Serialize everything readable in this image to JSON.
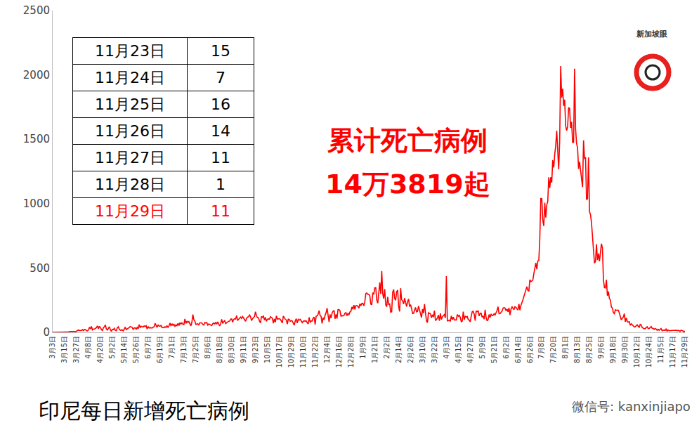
{
  "chart_data": {
    "type": "line",
    "title": "印尼每日新增死亡病例",
    "color": "#ff0000",
    "ylim": [
      0,
      2500
    ],
    "yticks": [
      0,
      500,
      1000,
      1500,
      2000,
      2500
    ],
    "grid": false,
    "annotations": [
      "累计死亡病例",
      "14万3819起"
    ],
    "categories": [
      "3月3日",
      null,
      null,
      null,
      null,
      null,
      null,
      null,
      null,
      null,
      null,
      null,
      "3月15日",
      null,
      null,
      null,
      null,
      null,
      null,
      null,
      null,
      null,
      null,
      null,
      "3月27日",
      null,
      null,
      null,
      null,
      null,
      null,
      null,
      null,
      null,
      null,
      null,
      "4月8日",
      null,
      null,
      null,
      null,
      null,
      null,
      null,
      null,
      null,
      null,
      null,
      "4月20日",
      null,
      null,
      null,
      null,
      null,
      null,
      null,
      null,
      null,
      null,
      null,
      "5月2日",
      null,
      null,
      null,
      null,
      null,
      null,
      null,
      null,
      null,
      null,
      null,
      "5月14日",
      null,
      null,
      null,
      null,
      null,
      null,
      null,
      null,
      null,
      null,
      null,
      "5月26日",
      null,
      null,
      null,
      null,
      null,
      null,
      null,
      null,
      null,
      null,
      null,
      "6月7日",
      null,
      null,
      null,
      null,
      null,
      null,
      null,
      null,
      null,
      null,
      null,
      "6月19日",
      null,
      null,
      null,
      null,
      null,
      null,
      null,
      null,
      null,
      null,
      null,
      "7月1日",
      null,
      null,
      null,
      null,
      null,
      null,
      null,
      null,
      null,
      null,
      null,
      "7月13日",
      null,
      null,
      null,
      null,
      null,
      null,
      null,
      null,
      null,
      null,
      null,
      "7月25日",
      null,
      null,
      null,
      null,
      null,
      null,
      null,
      null,
      null,
      null,
      null,
      "8月6日",
      null,
      null,
      null,
      null,
      null,
      null,
      null,
      null,
      null,
      null,
      null,
      "8月18日",
      null,
      null,
      null,
      null,
      null,
      null,
      null,
      null,
      null,
      null,
      null,
      "8月30日",
      null,
      null,
      null,
      null,
      null,
      null,
      null,
      null,
      null,
      null,
      null,
      "9月11日",
      null,
      null,
      null,
      null,
      null,
      null,
      null,
      null,
      null,
      null,
      null,
      "9月23日",
      null,
      null,
      null,
      null,
      null,
      null,
      null,
      null,
      null,
      null,
      null,
      "10月5日",
      null,
      null,
      null,
      null,
      null,
      null,
      null,
      null,
      null,
      null,
      null,
      "10月17日",
      null,
      null,
      null,
      null,
      null,
      null,
      null,
      null,
      null,
      null,
      null,
      "10月29日",
      null,
      null,
      null,
      null,
      null,
      null,
      null,
      null,
      null,
      null,
      null,
      "11月10日",
      null,
      null,
      null,
      null,
      null,
      null,
      null,
      null,
      null,
      null,
      null,
      "11月22日",
      null,
      null,
      null,
      null,
      null,
      null,
      null,
      null,
      null,
      null,
      null,
      "12月4日",
      null,
      null,
      null,
      null,
      null,
      null,
      null,
      null,
      null,
      null,
      null,
      "12月16日",
      null,
      null,
      null,
      null,
      null,
      null,
      null,
      null,
      null,
      null,
      null,
      "12月28日",
      null,
      null,
      null,
      null,
      null,
      null,
      null,
      null,
      null,
      null,
      null,
      "1月9日",
      null,
      null,
      null,
      null,
      null,
      null,
      null,
      null,
      null,
      null,
      null,
      "1月21日",
      null,
      null,
      null,
      null,
      null,
      null,
      null,
      null,
      null,
      null,
      null,
      "2月2日",
      null,
      null,
      null,
      null,
      null,
      null,
      null,
      null,
      null,
      null,
      null,
      "2月14日",
      null,
      null,
      null,
      null,
      null,
      null,
      null,
      null,
      null,
      null,
      null,
      "2月26日",
      null,
      null,
      null,
      null,
      null,
      null,
      null,
      null,
      null,
      null,
      null,
      "3月10日",
      null,
      null,
      null,
      null,
      null,
      null,
      null,
      null,
      null,
      null,
      null,
      "3月22日",
      null,
      null,
      null,
      null,
      null,
      null,
      null,
      null,
      null,
      null,
      null,
      "4月3日",
      null,
      null,
      null,
      null,
      null,
      null,
      null,
      null,
      null,
      null,
      null,
      "4月15日",
      null,
      null,
      null,
      null,
      null,
      null,
      null,
      null,
      null,
      null,
      null,
      "4月27日",
      null,
      null,
      null,
      null,
      null,
      null,
      null,
      null,
      null,
      null,
      null,
      "5月9日",
      null,
      null,
      null,
      null,
      null,
      null,
      null,
      null,
      null,
      null,
      null,
      "5月21日",
      null,
      null,
      null,
      null,
      null,
      null,
      null,
      null,
      null,
      null,
      null,
      "6月2日",
      null,
      null,
      null,
      null,
      null,
      null,
      null,
      null,
      null,
      null,
      null,
      "6月14日",
      null,
      null,
      null,
      null,
      null,
      null,
      null,
      null,
      null,
      null,
      null,
      "6月26日",
      null,
      null,
      null,
      null,
      null,
      null,
      null,
      null,
      null,
      null,
      null,
      "7月8日",
      null,
      null,
      null,
      null,
      null,
      null,
      null,
      null,
      null,
      null,
      null,
      "7月20日",
      null,
      null,
      null,
      null,
      null,
      null,
      null,
      null,
      null,
      null,
      null,
      "8月1日",
      null,
      null,
      null,
      null,
      null,
      null,
      null,
      null,
      null,
      null,
      null,
      "8月13日",
      null,
      null,
      null,
      null,
      null,
      null,
      null,
      null,
      null,
      null,
      null,
      "8月25日",
      null,
      null,
      null,
      null,
      null,
      null,
      null,
      null,
      null,
      null,
      null,
      "9月6日",
      null,
      null,
      null,
      null,
      null,
      null,
      null,
      null,
      null,
      null,
      null,
      "9月18日",
      null,
      null,
      null,
      null,
      null,
      null,
      null,
      null,
      null,
      null,
      null,
      "9月30日",
      null,
      null,
      null,
      null,
      null,
      null,
      null,
      null,
      null,
      null,
      null,
      "10月12日",
      null,
      null,
      null,
      null,
      null,
      null,
      null,
      null,
      null,
      null,
      null,
      "10月24日",
      null,
      null,
      null,
      null,
      null,
      null,
      null,
      null,
      null,
      null,
      null,
      "11月5日",
      null,
      null,
      null,
      null,
      null,
      null,
      null,
      null,
      null,
      null,
      null,
      "11月17日",
      null,
      null,
      null,
      null,
      null,
      null,
      null,
      null,
      null,
      null,
      null,
      "11月29日"
    ],
    "values": [
      0,
      0,
      0,
      0,
      0,
      0,
      0,
      0,
      1,
      0,
      3,
      1,
      0,
      1,
      0,
      1,
      2,
      6,
      6,
      7,
      10,
      6,
      6,
      4,
      9,
      12,
      18,
      14,
      15,
      14,
      21,
      13,
      22,
      21,
      12,
      11,
      19,
      40,
      26,
      46,
      19,
      26,
      25,
      33,
      36,
      50,
      27,
      47,
      35,
      24,
      12,
      35,
      43,
      58,
      25,
      18,
      29,
      43,
      21,
      8,
      23,
      21,
      31,
      14,
      12,
      35,
      43,
      24,
      16,
      17,
      18,
      11,
      30,
      40,
      21,
      26,
      29,
      38,
      45,
      41,
      38,
      21,
      34,
      35,
      24,
      38,
      27,
      60,
      35,
      48,
      45,
      41,
      50,
      44,
      52,
      26,
      45,
      34,
      36,
      33,
      33,
      40,
      43,
      70,
      51,
      39,
      59,
      48,
      48,
      53,
      37,
      38,
      36,
      43,
      38,
      51,
      39,
      50,
      73,
      49,
      67,
      55,
      62,
      44,
      58,
      51,
      70,
      52,
      75,
      64,
      73,
      62,
      60,
      104,
      69,
      87,
      76,
      84,
      66,
      50,
      76,
      139,
      98,
      87,
      61,
      65,
      66,
      58,
      74,
      74,
      73,
      62,
      56,
      76,
      72,
      76,
      56,
      65,
      59,
      58,
      52,
      67,
      72,
      65,
      79,
      63,
      82,
      65,
      50,
      68,
      101,
      69,
      82,
      93,
      68,
      74,
      82,
      86,
      87,
      103,
      104,
      79,
      100,
      106,
      103,
      130,
      92,
      101,
      105,
      119,
      108,
      123,
      112,
      94,
      86,
      108,
      118,
      121,
      135,
      123,
      91,
      105,
      118,
      123,
      160,
      128,
      114,
      112,
      87,
      73,
      123,
      116,
      128,
      95,
      116,
      85,
      102,
      104,
      101,
      121,
      116,
      108,
      71,
      104,
      79,
      128,
      102,
      103,
      106,
      101,
      85,
      73,
      126,
      113,
      102,
      96,
      64,
      102,
      100,
      86,
      91,
      88,
      71,
      55,
      89,
      106,
      72,
      101,
      94,
      101,
      89,
      75,
      85,
      89,
      87,
      89,
      75,
      65,
      117,
      76,
      88,
      88,
      111,
      118,
      61,
      125,
      128,
      141,
      169,
      130,
      123,
      69,
      114,
      98,
      132,
      152,
      187,
      124,
      81,
      139,
      110,
      148,
      164,
      170,
      105,
      139,
      107,
      176,
      177,
      167,
      123,
      130,
      127,
      131,
      148,
      153,
      128,
      146,
      137,
      158,
      164,
      197,
      179,
      212,
      178,
      207,
      207,
      202,
      187,
      221,
      207,
      224,
      226,
      205,
      238,
      302,
      306,
      295,
      296,
      283,
      220,
      214,
      308,
      294,
      346,
      346,
      250,
      226,
      297,
      387,
      298,
      476,
      299,
      262,
      336,
      214,
      199,
      275,
      217,
      221,
      157,
      159,
      311,
      333,
      263,
      249,
      315,
      328,
      201,
      162,
      343,
      254,
      244,
      220,
      265,
      223,
      200,
      238,
      259,
      200,
      215,
      186,
      146,
      147,
      172,
      194,
      159,
      163,
      204,
      177,
      137,
      114,
      181,
      149,
      219,
      148,
      87,
      76,
      152,
      147,
      144,
      113,
      136,
      119,
      169,
      94,
      98,
      111,
      135,
      90,
      147,
      100,
      121,
      130,
      138,
      112,
      436,
      89,
      91,
      93,
      88,
      127,
      99,
      118,
      96,
      98,
      96,
      138,
      124,
      132,
      117,
      83,
      87,
      160,
      98,
      125,
      118,
      123,
      99,
      95,
      81,
      125,
      160,
      163,
      141,
      91,
      164,
      161,
      166,
      127,
      149,
      149,
      117,
      127,
      102,
      176,
      115,
      89,
      100,
      139,
      115,
      143,
      129,
      132,
      144,
      135,
      150,
      169,
      199,
      144,
      146,
      157,
      164,
      187,
      193,
      188,
      168,
      181,
      160,
      190,
      134,
      177,
      199,
      187,
      176,
      199,
      195,
      183,
      173,
      221,
      172,
      209,
      227,
      253,
      278,
      304,
      336,
      355,
      325,
      321,
      409,
      394,
      399,
      407,
      455,
      504,
      539,
      491,
      555,
      558,
      728,
      1040,
      1040,
      870,
      826,
      1007,
      892,
      990,
      1016,
      1205,
      1121,
      1205,
      1163,
      1338,
      1280,
      1383,
      1449,
      1566,
      1415,
      1266,
      1487,
      2069,
      1824,
      1893,
      1759,
      1808,
      1604,
      1568,
      1598,
      1747,
      1739,
      1588,
      1635,
      1475,
      1475,
      2048,
      1579,
      1466,
      1432,
      1270,
      1324,
      1245,
      1180,
      1128,
      1492,
      1348,
      1361,
      1030,
      1038,
      1359,
      937,
      914,
      850,
      742,
      594,
      537,
      550,
      685,
      561,
      612,
      552,
      629,
      688,
      654,
      409,
      347,
      344,
      409,
      284,
      317,
      263,
      251,
      196,
      189,
      152,
      145,
      175,
      171,
      171,
      172,
      150,
      117,
      96,
      109,
      118,
      145,
      82,
      112,
      82,
      80,
      83,
      54,
      67,
      59,
      49,
      42,
      43,
      50,
      59,
      47,
      39,
      62,
      57,
      37,
      30,
      28,
      29,
      36,
      43,
      29,
      30,
      36,
      45,
      31,
      31,
      23,
      30,
      25,
      16,
      24,
      16,
      23,
      30,
      12,
      17,
      18,
      14,
      25,
      9,
      18,
      12,
      13,
      15,
      15,
      13,
      16,
      15,
      16,
      13,
      14,
      15,
      7,
      16,
      14,
      11,
      1,
      11
    ]
  },
  "table": {
    "rows": [
      [
        "11月23日",
        15
      ],
      [
        "11月24日",
        7
      ],
      [
        "11月25日",
        16
      ],
      [
        "11月26日",
        14
      ],
      [
        "11月27日",
        11
      ],
      [
        "11月28日",
        1
      ],
      [
        "11月29日",
        11
      ]
    ]
  },
  "logo": "新加坡眼",
  "watermark": "微信号: kanxinjiapo"
}
